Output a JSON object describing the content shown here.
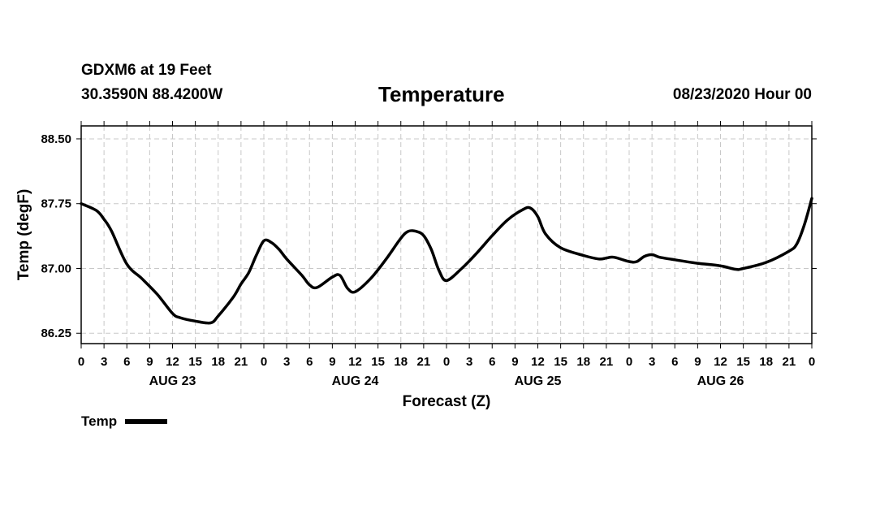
{
  "header": {
    "station": "GDXM6 at 19 Feet",
    "coords": "30.3590N 88.4200W",
    "title": "Temperature",
    "run_time": "08/23/2020 Hour 00"
  },
  "legend": {
    "label": "Temp",
    "color": "#000000"
  },
  "chart_data": {
    "type": "line",
    "title": "Temperature",
    "xlabel": "Forecast (Z)",
    "ylabel": "Temp (degF)",
    "xlim": [
      0,
      96
    ],
    "ylim": [
      86.13,
      88.65
    ],
    "grid": true,
    "legend_position": "bottom-left",
    "x_ticks": [
      0,
      3,
      6,
      9,
      12,
      15,
      18,
      21,
      24,
      27,
      30,
      33,
      36,
      39,
      42,
      45,
      48,
      51,
      54,
      57,
      60,
      63,
      66,
      69,
      72,
      75,
      78,
      81,
      84,
      87,
      90,
      93,
      96
    ],
    "x_tick_labels": [
      "0",
      "3",
      "6",
      "9",
      "12",
      "15",
      "18",
      "21",
      "0",
      "3",
      "6",
      "9",
      "12",
      "15",
      "18",
      "21",
      "0",
      "3",
      "6",
      "9",
      "12",
      "15",
      "18",
      "21",
      "0",
      "3",
      "6",
      "9",
      "12",
      "15",
      "18",
      "21",
      "0"
    ],
    "day_labels": [
      {
        "x": 12,
        "label": "AUG 23"
      },
      {
        "x": 36,
        "label": "AUG 24"
      },
      {
        "x": 60,
        "label": "AUG 25"
      },
      {
        "x": 84,
        "label": "AUG 26"
      }
    ],
    "y_ticks": [
      86.25,
      87.0,
      87.75,
      88.5
    ],
    "y_tick_labels": [
      "86.25",
      "87.00",
      "87.75",
      "88.50"
    ],
    "series": [
      {
        "name": "Temp",
        "color": "#000000",
        "x": [
          0,
          2,
          3,
          4,
          6,
          8,
          10,
          12,
          13,
          15,
          17,
          18,
          20,
          21,
          22,
          23,
          24,
          25,
          26,
          27,
          29,
          30,
          31,
          33,
          34,
          35,
          36,
          38,
          40,
          42,
          43,
          44,
          45,
          46,
          47,
          48,
          50,
          52,
          54,
          56,
          58,
          59,
          60,
          61,
          63,
          66,
          68,
          69,
          70,
          72,
          73,
          74,
          75,
          76,
          78,
          81,
          84,
          86,
          87,
          90,
          93,
          94,
          95,
          96
        ],
        "y": [
          87.75,
          87.67,
          87.57,
          87.43,
          87.05,
          86.88,
          86.7,
          86.48,
          86.43,
          86.39,
          86.37,
          86.45,
          86.67,
          86.82,
          86.95,
          87.15,
          87.32,
          87.3,
          87.22,
          87.11,
          86.92,
          86.81,
          86.78,
          86.9,
          86.92,
          86.77,
          86.73,
          86.88,
          87.1,
          87.35,
          87.43,
          87.43,
          87.38,
          87.22,
          86.98,
          86.86,
          87.0,
          87.18,
          87.38,
          87.56,
          87.68,
          87.7,
          87.6,
          87.4,
          87.24,
          87.15,
          87.11,
          87.12,
          87.13,
          87.08,
          87.08,
          87.14,
          87.16,
          87.13,
          87.1,
          87.06,
          87.03,
          86.99,
          87.0,
          87.07,
          87.2,
          87.28,
          87.5,
          87.81
        ]
      }
    ]
  }
}
